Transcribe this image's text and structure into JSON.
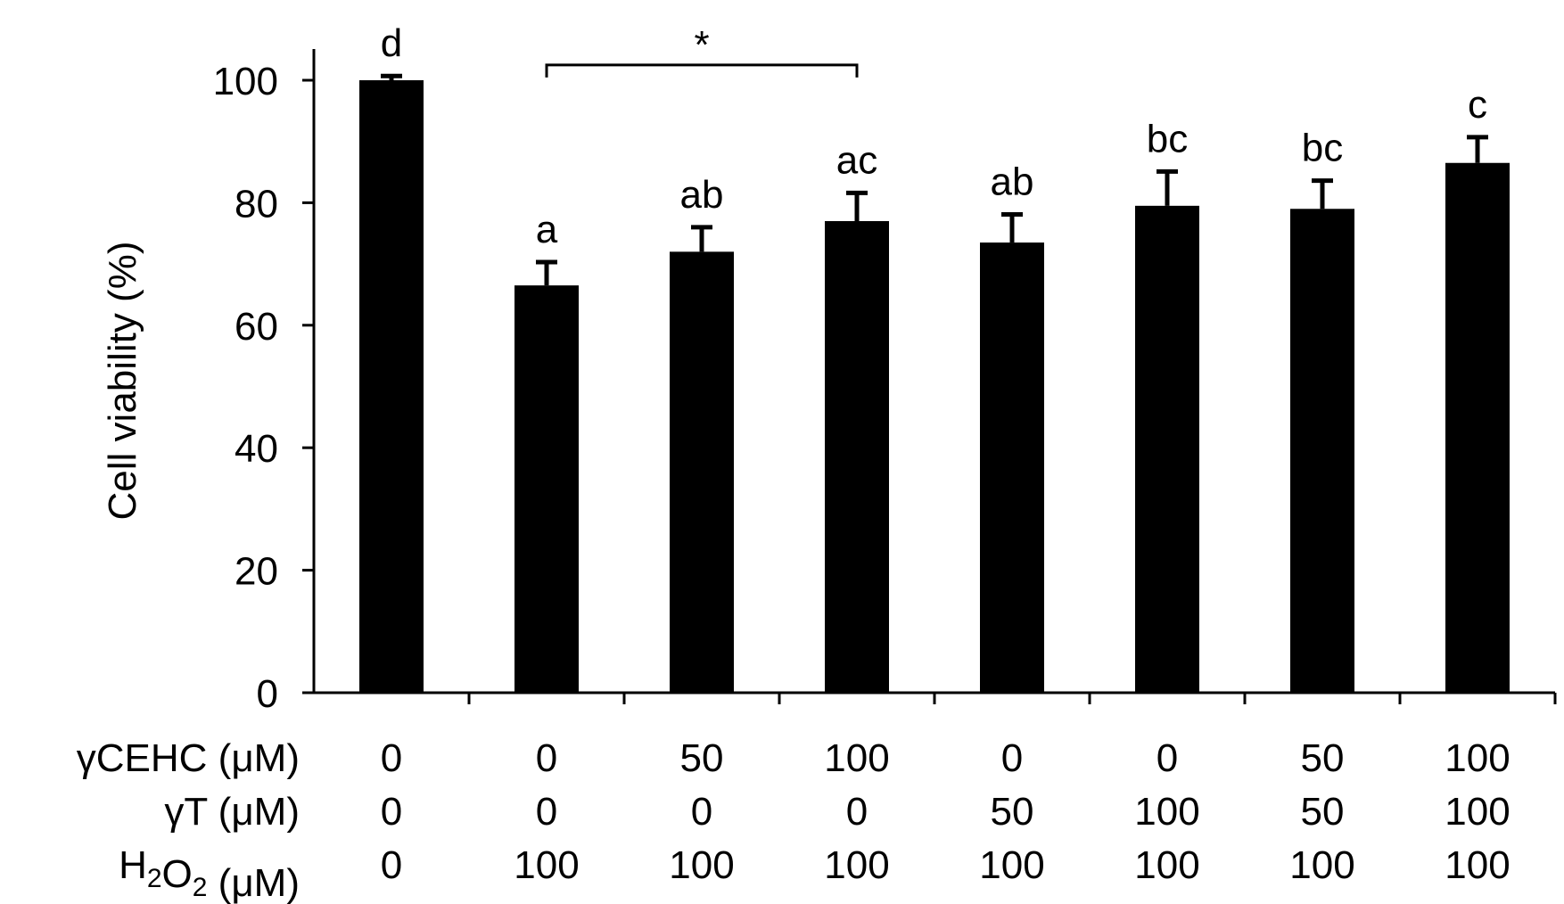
{
  "chart_data": {
    "type": "bar",
    "title": "",
    "xlabel": "",
    "ylabel": "Cell viability (%)",
    "ylim": [
      0,
      100
    ],
    "yticks": [
      "0",
      "20",
      "40",
      "60",
      "80",
      "100"
    ],
    "legend": "none",
    "grid": false,
    "bar_color": "#000000",
    "series": [
      {
        "values": [
          100,
          66.5,
          72,
          77,
          73.5,
          79.5,
          79,
          86.5
        ],
        "errors": [
          0.7,
          3.8,
          4.0,
          4.6,
          4.6,
          5.6,
          4.6,
          4.2
        ]
      }
    ],
    "significance_letters": [
      "d",
      "a",
      "ab",
      "ac",
      "ab",
      "bc",
      "bc",
      "c"
    ],
    "bracket": {
      "from": 1,
      "to": 3,
      "label": "*",
      "y": 102.5
    },
    "treatment_rows": [
      {
        "label_main": "γCEHC (μM)",
        "values": [
          "0",
          "0",
          "50",
          "100",
          "0",
          "0",
          "50",
          "100"
        ]
      },
      {
        "label_main": "γT (μM)",
        "values": [
          "0",
          "0",
          "0",
          "0",
          "50",
          "100",
          "50",
          "100"
        ]
      },
      {
        "label_main": "H",
        "label_sub1": "2",
        "label_mid": "O",
        "label_sub2": "2",
        "label_tail": " (μM)",
        "values": [
          "0",
          "100",
          "100",
          "100",
          "100",
          "100",
          "100",
          "100"
        ]
      }
    ]
  }
}
